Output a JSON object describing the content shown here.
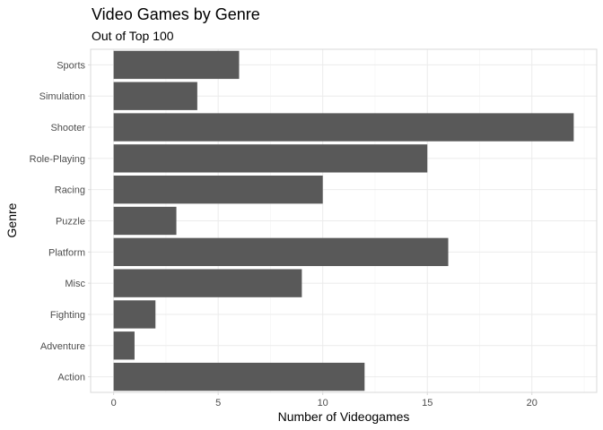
{
  "chart_data": {
    "type": "bar",
    "orientation": "horizontal",
    "title": "Video Games by Genre",
    "subtitle": "Out of Top 100",
    "xlabel": "Number of Videogames",
    "ylabel": "Genre",
    "categories": [
      "Sports",
      "Simulation",
      "Shooter",
      "Role-Playing",
      "Racing",
      "Puzzle",
      "Platform",
      "Misc",
      "Fighting",
      "Adventure",
      "Action"
    ],
    "values": [
      6,
      4,
      22,
      15,
      10,
      3,
      16,
      9,
      2,
      1,
      12
    ],
    "x_ticks": [
      0,
      5,
      10,
      15,
      20
    ],
    "xlim": [
      -1.1,
      23.1
    ],
    "grid": true,
    "bar_color": "#595959",
    "grid_color": "#ebebeb"
  }
}
